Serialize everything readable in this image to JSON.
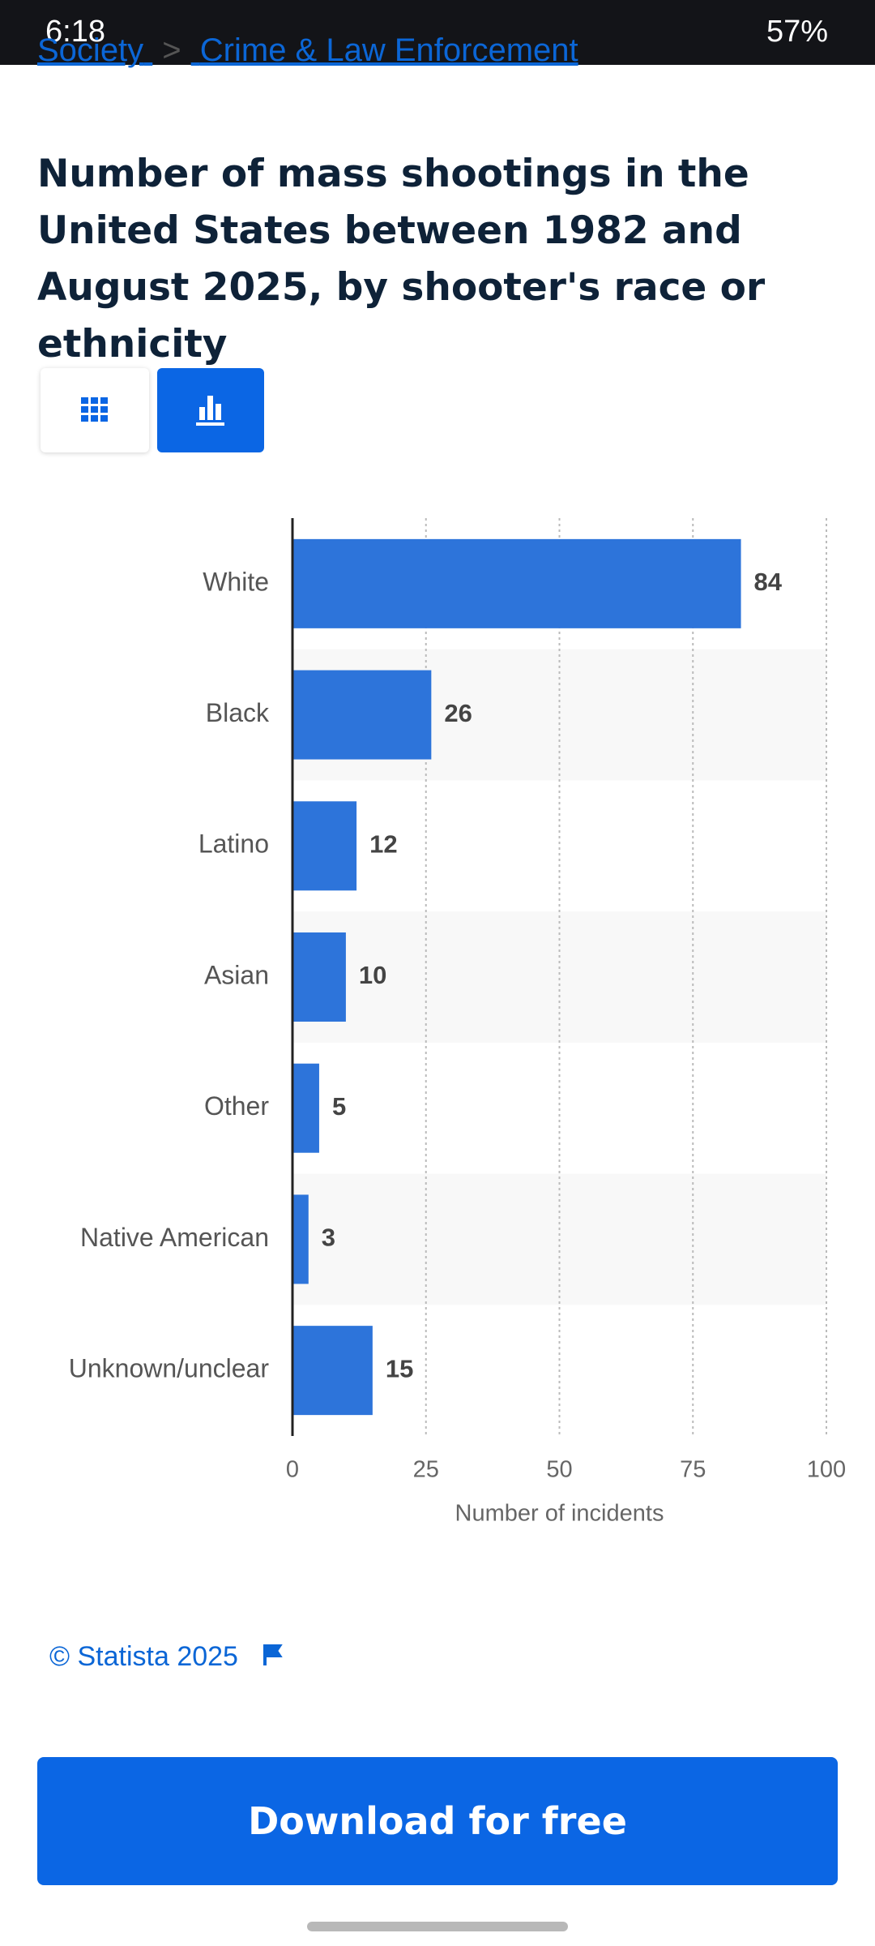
{
  "status_bar": {
    "time": "6:18",
    "battery": "57%"
  },
  "breadcrumb": {
    "items": [
      "Society",
      "Crime & Law Enforcement"
    ],
    "separator": ">"
  },
  "chart_data": {
    "type": "bar",
    "orientation": "horizontal",
    "title": "Number of mass shootings in the United States between 1982 and August 2025, by shooter's race or ethnicity",
    "categories": [
      "White",
      "Black",
      "Latino",
      "Asian",
      "Other",
      "Native American",
      "Unknown/unclear"
    ],
    "values": [
      84,
      26,
      12,
      10,
      5,
      3,
      15
    ],
    "color": "#2d74da",
    "xlim": [
      0,
      100
    ],
    "xticks": [
      0,
      25,
      50,
      75,
      100
    ],
    "xlabel": "Number of incidents",
    "grid": true
  },
  "footer": {
    "copyright": "© Statista 2025"
  },
  "download_button": {
    "label": "Download for free"
  }
}
